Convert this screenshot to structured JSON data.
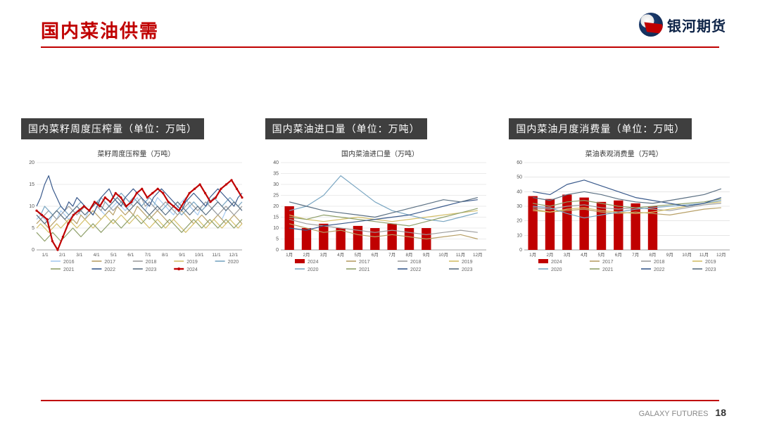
{
  "page": {
    "title": "国内菜油供需",
    "brand": "银河期货",
    "footer_en": "GALAXY FUTURES",
    "page_number": "18",
    "accent_color": "#c00000",
    "bg_color": "#ffffff",
    "caption_bg": "#3f3f3f"
  },
  "palette": {
    "2016": "#a6caf0",
    "2017": "#b8a068",
    "2018": "#9e9e9e",
    "2019": "#d4c06a",
    "2020": "#7aa6c2",
    "2021": "#8fa06a",
    "2022": "#3a5a8c",
    "2023": "#5b7083",
    "2024": "#c00000"
  },
  "chart1": {
    "caption": "国内菜籽周度压榨量（单位：万吨）",
    "title": "菜籽周度压榨量（万吨）",
    "type": "line",
    "ylim": [
      0,
      20
    ],
    "ytick_step": 5,
    "x_labels": [
      "1/1",
      "2/1",
      "3/1",
      "4/1",
      "5/1",
      "6/1",
      "7/1",
      "8/1",
      "9/1",
      "10/1",
      "11/1",
      "12/1"
    ],
    "grid_color": "#d8d8d8",
    "series": {
      "2016": [
        7,
        8,
        7,
        6,
        8,
        7,
        9,
        8,
        7,
        8,
        9,
        8,
        7,
        9,
        8,
        10,
        9,
        8,
        9,
        10,
        11,
        10,
        9,
        10,
        11,
        12,
        10,
        9,
        11,
        10,
        12,
        11,
        10,
        9,
        8,
        10,
        11,
        12,
        10,
        9,
        8,
        10,
        11,
        10,
        9,
        8,
        7,
        9,
        10,
        11,
        10,
        9
      ],
      "2017": [
        6,
        7,
        6,
        5,
        6,
        7,
        8,
        7,
        6,
        7,
        6,
        8,
        7,
        8,
        9,
        8,
        7,
        8,
        9,
        8,
        10,
        9,
        8,
        9,
        8,
        10,
        9,
        8,
        7,
        8,
        9,
        8,
        7,
        6,
        7,
        8,
        9,
        8,
        7,
        6,
        7,
        8,
        7,
        6,
        7,
        8,
        7,
        6,
        7,
        8,
        7,
        6
      ],
      "2018": [
        8,
        7,
        8,
        9,
        8,
        7,
        8,
        9,
        10,
        9,
        8,
        9,
        10,
        9,
        8,
        10,
        9,
        11,
        10,
        9,
        10,
        11,
        12,
        11,
        10,
        11,
        12,
        10,
        11,
        10,
        9,
        10,
        11,
        10,
        9,
        8,
        9,
        10,
        11,
        10,
        9,
        10,
        11,
        10,
        9,
        8,
        9,
        10,
        9,
        8,
        9,
        10
      ],
      "2019": [
        5,
        6,
        5,
        4,
        5,
        6,
        5,
        6,
        7,
        6,
        5,
        6,
        7,
        6,
        5,
        6,
        7,
        8,
        7,
        6,
        7,
        8,
        7,
        6,
        7,
        8,
        7,
        6,
        5,
        6,
        7,
        6,
        5,
        6,
        7,
        6,
        5,
        4,
        5,
        6,
        7,
        6,
        5,
        6,
        7,
        6,
        5,
        6,
        7,
        6,
        5,
        6
      ],
      "2020": [
        9,
        8,
        10,
        9,
        8,
        9,
        10,
        9,
        8,
        9,
        10,
        11,
        10,
        9,
        10,
        11,
        12,
        11,
        10,
        11,
        12,
        13,
        12,
        11,
        12,
        11,
        10,
        11,
        12,
        11,
        10,
        9,
        10,
        11,
        10,
        9,
        8,
        9,
        10,
        11,
        10,
        9,
        10,
        11,
        12,
        11,
        10,
        11,
        12,
        11,
        10,
        11
      ],
      "2021": [
        4,
        3,
        2,
        3,
        4,
        3,
        2,
        3,
        4,
        5,
        4,
        3,
        4,
        5,
        6,
        5,
        4,
        5,
        6,
        7,
        6,
        5,
        6,
        7,
        8,
        7,
        6,
        7,
        8,
        7,
        6,
        5,
        6,
        7,
        6,
        5,
        4,
        5,
        6,
        7,
        6,
        5,
        6,
        7,
        6,
        5,
        6,
        7,
        6,
        5,
        6,
        7
      ],
      "2022": [
        10,
        12,
        15,
        17,
        14,
        12,
        10,
        9,
        11,
        10,
        12,
        11,
        10,
        9,
        8,
        10,
        12,
        13,
        14,
        12,
        11,
        10,
        12,
        13,
        14,
        13,
        12,
        11,
        10,
        12,
        13,
        14,
        13,
        12,
        11,
        10,
        9,
        11,
        12,
        13,
        12,
        11,
        10,
        12,
        13,
        14,
        13,
        12,
        11,
        10,
        12,
        13
      ],
      "2023": [
        8,
        7,
        6,
        7,
        8,
        9,
        8,
        7,
        8,
        9,
        10,
        9,
        8,
        9,
        10,
        11,
        10,
        9,
        10,
        11,
        12,
        11,
        10,
        9,
        10,
        11,
        10,
        9,
        8,
        9,
        10,
        9,
        8,
        9,
        10,
        11,
        10,
        9,
        8,
        9,
        10,
        9,
        8,
        9,
        10,
        11,
        10,
        9,
        10,
        11,
        10,
        9
      ],
      "2024": [
        9,
        8,
        7,
        2,
        0,
        3,
        6,
        8,
        9,
        10,
        9,
        11,
        10,
        12,
        11,
        13,
        12,
        10,
        11,
        13,
        14,
        12,
        13,
        14,
        13,
        11,
        10,
        9,
        11,
        13,
        14,
        15,
        13,
        11,
        12,
        14,
        15,
        16,
        14,
        12
      ]
    },
    "legend_order": [
      "2016",
      "2017",
      "2018",
      "2019",
      "2020",
      "2021",
      "2022",
      "2023",
      "2024"
    ]
  },
  "chart2": {
    "caption": "国内菜油进口量（单位：万吨）",
    "title": "国内菜油进口量（万吨）",
    "type": "bar+line",
    "ylim": [
      0,
      40
    ],
    "ytick_step": 5,
    "x_labels": [
      "1月",
      "2月",
      "3月",
      "4月",
      "5月",
      "6月",
      "7月",
      "8月",
      "9月",
      "10月",
      "11月",
      "12月"
    ],
    "grid_color": "#d8d8d8",
    "bar_series": "2024",
    "bar_color": "#c00000",
    "bar_values": [
      20,
      10,
      12,
      10,
      11,
      10,
      12,
      10,
      10,
      null,
      null,
      null
    ],
    "lines": {
      "2017": [
        12,
        10,
        8,
        9,
        7,
        6,
        7,
        6,
        5,
        6,
        7,
        5
      ],
      "2018": [
        14,
        12,
        11,
        10,
        9,
        8,
        9,
        8,
        7,
        8,
        9,
        8
      ],
      "2019": [
        16,
        14,
        13,
        14,
        15,
        14,
        13,
        14,
        15,
        16,
        17,
        18
      ],
      "2020": [
        18,
        20,
        25,
        34,
        28,
        22,
        18,
        16,
        14,
        13,
        15,
        17
      ],
      "2021": [
        15,
        14,
        16,
        15,
        14,
        13,
        12,
        11,
        13,
        15,
        17,
        19
      ],
      "2022": [
        10,
        9,
        11,
        12,
        13,
        14,
        15,
        16,
        18,
        20,
        22,
        23
      ],
      "2023": [
        22,
        20,
        18,
        17,
        16,
        15,
        17,
        19,
        21,
        23,
        22,
        24
      ]
    },
    "legend_order": [
      "2024",
      "2017",
      "2018",
      "2019",
      "2020",
      "2021",
      "2022",
      "2023"
    ]
  },
  "chart3": {
    "caption": "国内菜油月度消费量（单位：万吨）",
    "title": "菜油表观消费量（万吨）",
    "type": "bar+line",
    "ylim": [
      0,
      60
    ],
    "ytick_step": 10,
    "x_labels": [
      "1月",
      "2月",
      "3月",
      "4月",
      "5月",
      "6月",
      "7月",
      "8月",
      "9月",
      "10月",
      "11月",
      "12月"
    ],
    "grid_color": "#d8d8d8",
    "bar_series": "2024",
    "bar_color": "#c00000",
    "bar_values": [
      37,
      35,
      38,
      36,
      33,
      34,
      32,
      30,
      null,
      null,
      null,
      null
    ],
    "lines": {
      "2017": [
        28,
        26,
        27,
        28,
        26,
        25,
        26,
        25,
        24,
        26,
        28,
        29
      ],
      "2018": [
        29,
        28,
        30,
        31,
        29,
        28,
        29,
        28,
        27,
        29,
        31,
        32
      ],
      "2019": [
        27,
        26,
        28,
        29,
        27,
        26,
        25,
        26,
        28,
        30,
        32,
        33
      ],
      "2020": [
        30,
        29,
        25,
        22,
        24,
        26,
        28,
        29,
        30,
        31,
        32,
        34
      ],
      "2021": [
        32,
        30,
        33,
        34,
        32,
        30,
        29,
        30,
        31,
        32,
        33,
        35
      ],
      "2022": [
        40,
        38,
        45,
        48,
        44,
        40,
        36,
        34,
        32,
        30,
        32,
        36
      ],
      "2023": [
        36,
        34,
        38,
        40,
        38,
        35,
        33,
        32,
        34,
        36,
        38,
        42
      ]
    },
    "legend_order": [
      "2024",
      "2017",
      "2018",
      "2019",
      "2020",
      "2021",
      "2022",
      "2023"
    ]
  }
}
